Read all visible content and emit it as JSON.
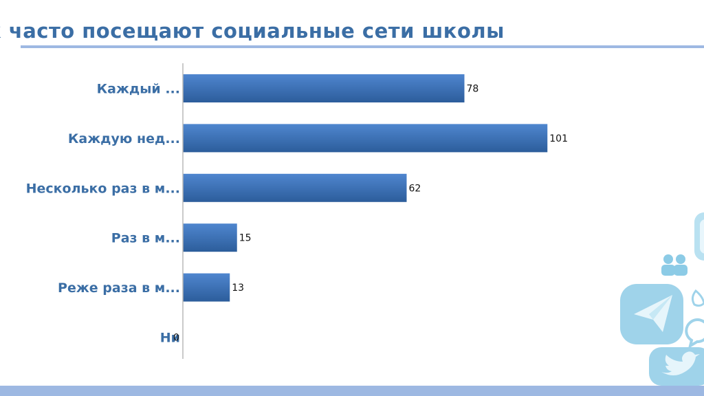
{
  "slide": {
    "title": "к часто посещают социальные сети школы"
  },
  "colors": {
    "title": "#3b6ea5",
    "accent_rule": "#9db8e2",
    "bar_top": "#4f86cf",
    "bar_bottom": "#2c5d9b"
  },
  "chart_data": {
    "type": "bar",
    "orientation": "horizontal",
    "categories": [
      "Каждый ...",
      "Каждую нед...",
      "Несколько раз в м...",
      "Раз в м...",
      "Реже раза в м...",
      "Ни"
    ],
    "values": [
      78,
      101,
      62,
      15,
      13,
      0
    ],
    "data_labels": [
      "78",
      "101",
      "62",
      "15",
      "13",
      "0"
    ],
    "xlim": [
      0,
      120
    ],
    "grid": false,
    "legend": "none"
  },
  "decorations": {
    "icons": [
      "telegram-icon",
      "twitter-icon",
      "people-icon",
      "speech-bubble-icon",
      "social-tile-icon"
    ]
  }
}
